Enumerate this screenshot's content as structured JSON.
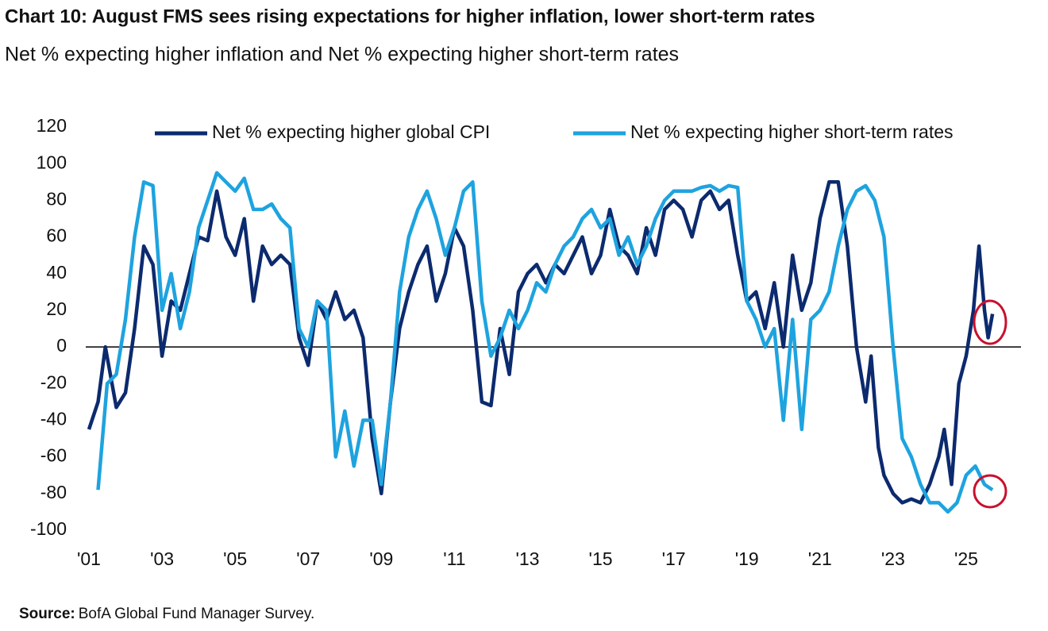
{
  "chart_data": {
    "type": "line",
    "title": "Chart 10: August FMS sees rising expectations for higher inflation, lower short-term rates",
    "subtitle": "Net % expecting higher inflation and Net % expecting higher short-term rates",
    "source_label": "Source:",
    "source": "BofA Global Fund Manager Survey.",
    "xlim": [
      2001,
      2026.5
    ],
    "xticks": [
      {
        "value": 2001,
        "label": "'01"
      },
      {
        "value": 2003,
        "label": "'03"
      },
      {
        "value": 2005,
        "label": "'05"
      },
      {
        "value": 2007,
        "label": "'07"
      },
      {
        "value": 2009,
        "label": "'09"
      },
      {
        "value": 2011,
        "label": "'11"
      },
      {
        "value": 2013,
        "label": "'13"
      },
      {
        "value": 2015,
        "label": "'15"
      },
      {
        "value": 2017,
        "label": "'17"
      },
      {
        "value": 2019,
        "label": "'19"
      },
      {
        "value": 2021,
        "label": "'21"
      },
      {
        "value": 2023,
        "label": "'23"
      },
      {
        "value": 2025,
        "label": "'25"
      }
    ],
    "ylim": [
      -100,
      120
    ],
    "yticks": [
      -100,
      -80,
      -60,
      -40,
      -20,
      0,
      20,
      40,
      60,
      80,
      100,
      120
    ],
    "series": [
      {
        "name": "Net % expecting higher global CPI",
        "color": "#0c2a6e",
        "x": [
          2001.0,
          2001.25,
          2001.45,
          2001.75,
          2002.0,
          2002.25,
          2002.5,
          2002.75,
          2003.0,
          2003.25,
          2003.5,
          2003.75,
          2004.0,
          2004.25,
          2004.5,
          2004.75,
          2005.0,
          2005.25,
          2005.5,
          2005.75,
          2006.0,
          2006.25,
          2006.5,
          2006.75,
          2007.0,
          2007.25,
          2007.5,
          2007.75,
          2008.0,
          2008.25,
          2008.5,
          2008.75,
          2009.0,
          2009.25,
          2009.5,
          2009.75,
          2010.0,
          2010.25,
          2010.5,
          2010.75,
          2011.0,
          2011.25,
          2011.5,
          2011.75,
          2012.0,
          2012.25,
          2012.5,
          2012.75,
          2013.0,
          2013.25,
          2013.5,
          2013.75,
          2014.0,
          2014.25,
          2014.5,
          2014.75,
          2015.0,
          2015.25,
          2015.5,
          2015.75,
          2016.0,
          2016.25,
          2016.5,
          2016.75,
          2017.0,
          2017.25,
          2017.5,
          2017.75,
          2018.0,
          2018.25,
          2018.5,
          2018.75,
          2019.0,
          2019.25,
          2019.5,
          2019.75,
          2020.0,
          2020.25,
          2020.5,
          2020.75,
          2021.0,
          2021.25,
          2021.5,
          2021.75,
          2022.0,
          2022.25,
          2022.4,
          2022.6,
          2022.75,
          2023.0,
          2023.25,
          2023.5,
          2023.75,
          2024.0,
          2024.25,
          2024.4,
          2024.6,
          2024.8,
          2025.0,
          2025.2,
          2025.35,
          2025.5,
          2025.6,
          2025.72
        ],
        "values": [
          -45,
          -30,
          0,
          -33,
          -25,
          10,
          55,
          45,
          -5,
          25,
          20,
          40,
          60,
          58,
          85,
          60,
          50,
          70,
          25,
          55,
          45,
          50,
          45,
          5,
          -10,
          25,
          15,
          30,
          15,
          20,
          5,
          -50,
          -80,
          -30,
          10,
          30,
          45,
          55,
          25,
          40,
          65,
          55,
          20,
          -30,
          -32,
          10,
          -15,
          30,
          40,
          45,
          35,
          45,
          40,
          50,
          60,
          40,
          50,
          75,
          55,
          50,
          40,
          65,
          50,
          75,
          80,
          75,
          60,
          80,
          85,
          75,
          80,
          50,
          25,
          30,
          10,
          35,
          0,
          50,
          20,
          35,
          70,
          90,
          90,
          55,
          0,
          -30,
          -5,
          -55,
          -70,
          -80,
          -85,
          -83,
          -85,
          -75,
          -60,
          -45,
          -75,
          -20,
          -5,
          20,
          55,
          20,
          5,
          18
        ]
      },
      {
        "name": "Net % expecting higher short-term rates",
        "color": "#1ea3df",
        "x": [
          2001.25,
          2001.5,
          2001.75,
          2002.0,
          2002.25,
          2002.5,
          2002.75,
          2003.0,
          2003.25,
          2003.5,
          2003.75,
          2004.0,
          2004.25,
          2004.5,
          2004.75,
          2005.0,
          2005.25,
          2005.5,
          2005.75,
          2006.0,
          2006.25,
          2006.5,
          2006.75,
          2007.0,
          2007.25,
          2007.5,
          2007.75,
          2008.0,
          2008.25,
          2008.5,
          2008.75,
          2009.0,
          2009.25,
          2009.5,
          2009.75,
          2010.0,
          2010.25,
          2010.5,
          2010.75,
          2011.0,
          2011.25,
          2011.5,
          2011.75,
          2012.0,
          2012.25,
          2012.5,
          2012.75,
          2013.0,
          2013.25,
          2013.5,
          2013.75,
          2014.0,
          2014.25,
          2014.5,
          2014.75,
          2015.0,
          2015.25,
          2015.5,
          2015.75,
          2016.0,
          2016.25,
          2016.5,
          2016.75,
          2017.0,
          2017.25,
          2017.5,
          2017.75,
          2018.0,
          2018.25,
          2018.5,
          2018.75,
          2019.0,
          2019.25,
          2019.5,
          2019.75,
          2020.0,
          2020.25,
          2020.5,
          2020.75,
          2021.0,
          2021.25,
          2021.5,
          2021.75,
          2022.0,
          2022.25,
          2022.5,
          2022.75,
          2023.0,
          2023.25,
          2023.5,
          2023.75,
          2024.0,
          2024.25,
          2024.5,
          2024.75,
          2025.0,
          2025.25,
          2025.5,
          2025.72
        ],
        "values": [
          -78,
          -20,
          -15,
          15,
          60,
          90,
          88,
          20,
          40,
          10,
          30,
          65,
          80,
          95,
          90,
          85,
          92,
          75,
          75,
          78,
          70,
          65,
          10,
          0,
          25,
          20,
          -60,
          -35,
          -65,
          -40,
          -40,
          -75,
          -30,
          30,
          60,
          75,
          85,
          70,
          50,
          65,
          85,
          90,
          25,
          -5,
          5,
          20,
          10,
          20,
          35,
          30,
          45,
          55,
          60,
          70,
          75,
          65,
          70,
          50,
          60,
          45,
          55,
          70,
          80,
          85,
          85,
          85,
          87,
          88,
          85,
          88,
          87,
          25,
          15,
          0,
          10,
          -40,
          15,
          -45,
          15,
          20,
          30,
          55,
          75,
          85,
          88,
          80,
          60,
          0,
          -50,
          -60,
          -75,
          -85,
          -85,
          -90,
          -85,
          -70,
          -65,
          -75,
          -78
        ]
      }
    ]
  }
}
